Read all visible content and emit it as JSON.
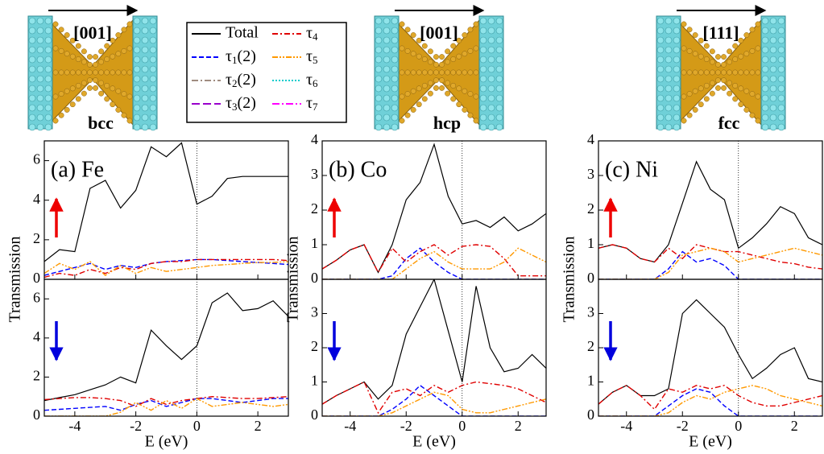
{
  "structures": [
    {
      "label": "bcc",
      "direction": "[001]"
    },
    {
      "label": "hcp",
      "direction": "[001]"
    },
    {
      "label": "fcc",
      "direction": "[111]"
    }
  ],
  "fermi_energy": 0,
  "legend": [
    {
      "name": "Total",
      "color": "#000000",
      "dash": "none"
    },
    {
      "name": "τ1(2)",
      "color": "#0000ff",
      "dash": "6,3"
    },
    {
      "name": "τ2(2)",
      "color": "#a08c80",
      "dash": "8,3,2,3"
    },
    {
      "name": "τ3(2)",
      "color": "#9900cc",
      "dash": "10,4"
    },
    {
      "name": "τ4",
      "color": "#e00000",
      "dash": "7,3,2,3"
    },
    {
      "name": "τ5",
      "color": "#ff9900",
      "dash": "7,2,2,2,2,2"
    },
    {
      "name": "τ6",
      "color": "#00cccc",
      "dash": "2,2"
    },
    {
      "name": "τ7",
      "color": "#ff00ff",
      "dash": "9,3,2,3"
    }
  ],
  "chart_data": [
    {
      "type": "line",
      "title": "(a) Fe",
      "y_label": "Transmission",
      "xlim": [
        -5,
        3
      ],
      "xticks": [
        -4,
        -2,
        0,
        2
      ],
      "ylim": [
        0,
        7
      ],
      "yticks": [
        0,
        2,
        4,
        6
      ],
      "x": [
        -5,
        -4.5,
        -4,
        -3.5,
        -3,
        -2.5,
        -2,
        -1.5,
        -1,
        -0.5,
        0,
        0.5,
        1,
        1.5,
        2,
        2.5,
        3
      ],
      "series": [
        {
          "name": "Total",
          "color": "#000000",
          "values": [
            0.9,
            1.5,
            1.4,
            4.6,
            5.0,
            3.6,
            4.5,
            6.7,
            6.2,
            6.9,
            3.8,
            4.2,
            5.1,
            5.2,
            5.2,
            5.2,
            5.2
          ]
        },
        {
          "name": "τ1(2)",
          "color": "#0000ff",
          "values": [
            0.2,
            0.4,
            0.6,
            0.8,
            0.5,
            0.7,
            0.6,
            0.8,
            0.9,
            0.95,
            1,
            1,
            0.95,
            0.9,
            0.85,
            0.8,
            0.75
          ]
        },
        {
          "name": "τ4",
          "color": "#e00000",
          "values": [
            0.1,
            0.3,
            0.2,
            0.5,
            0.3,
            0.6,
            0.5,
            0.8,
            0.9,
            0.9,
            1,
            1,
            1,
            1,
            1,
            1,
            0.95
          ]
        },
        {
          "name": "τ5",
          "color": "#ff9900",
          "values": [
            0.3,
            0.8,
            0.5,
            0.9,
            0.2,
            0.7,
            0.3,
            0.6,
            0.4,
            0.5,
            0.6,
            0.7,
            0.75,
            0.8,
            0.85,
            0.85,
            0.9
          ]
        }
      ]
    },
    {
      "type": "line",
      "x_label": "E (eV)",
      "xlim": [
        -5,
        3
      ],
      "xticks": [
        -4,
        -2,
        0,
        2
      ],
      "ylim": [
        0,
        7
      ],
      "yticks": [
        0,
        2,
        4,
        6
      ],
      "x": [
        -5,
        -4.5,
        -4,
        -3.5,
        -3,
        -2.5,
        -2,
        -1.5,
        -1,
        -0.5,
        0,
        0.5,
        1,
        1.5,
        2,
        2.5,
        3
      ],
      "series": [
        {
          "name": "Total",
          "color": "#000000",
          "values": [
            0.8,
            0.95,
            1.1,
            1.35,
            1.6,
            2.0,
            1.7,
            4.4,
            3.6,
            2.9,
            3.6,
            5.8,
            6.3,
            5.4,
            5.5,
            5.9,
            5.1
          ]
        },
        {
          "name": "τ1(2)",
          "color": "#0000ff",
          "values": [
            0.3,
            0.35,
            0.4,
            0.45,
            0.5,
            0.3,
            0.6,
            0.8,
            0.5,
            0.7,
            0.9,
            0.9,
            0.8,
            0.7,
            0.8,
            0.9,
            0.9
          ]
        },
        {
          "name": "τ4",
          "color": "#e00000",
          "values": [
            0.85,
            0.9,
            0.95,
            0.95,
            0.9,
            0.8,
            0.5,
            0.9,
            0.6,
            0.8,
            0.9,
            1,
            0.95,
            0.9,
            0.9,
            0.95,
            1
          ]
        },
        {
          "name": "τ5",
          "color": "#ff9900",
          "values": [
            0,
            0,
            0,
            0,
            0,
            0.2,
            0.7,
            0.3,
            0.8,
            0.4,
            0.9,
            0.5,
            0.6,
            0.7,
            0.6,
            0.5,
            0.6
          ]
        }
      ]
    },
    {
      "type": "line",
      "title": "(b) Co",
      "y_label": "Transmission",
      "xlim": [
        -5,
        3
      ],
      "xticks": [
        -4,
        -2,
        0,
        2
      ],
      "ylim": [
        0,
        4
      ],
      "yticks": [
        0,
        1,
        2,
        3,
        4
      ],
      "x": [
        -5,
        -4.5,
        -4,
        -3.5,
        -3,
        -2.5,
        -2,
        -1.5,
        -1,
        -0.5,
        0,
        0.5,
        1,
        1.5,
        2,
        2.5,
        3
      ],
      "series": [
        {
          "name": "Total",
          "color": "#000000",
          "values": [
            0.3,
            0.55,
            0.85,
            1.0,
            0.2,
            1.0,
            2.3,
            2.8,
            3.9,
            2.4,
            1.6,
            1.7,
            1.5,
            1.8,
            1.4,
            1.6,
            1.9
          ]
        },
        {
          "name": "τ1(2)",
          "color": "#0000ff",
          "values": [
            0,
            0,
            0,
            0,
            0,
            0.1,
            0.6,
            0.9,
            0.5,
            0.2,
            0,
            0,
            0,
            0,
            0,
            0,
            0
          ]
        },
        {
          "name": "τ4",
          "color": "#e00000",
          "values": [
            0.3,
            0.55,
            0.85,
            1.0,
            0.2,
            0.9,
            0.5,
            0.8,
            1,
            0.7,
            0.95,
            1,
            0.95,
            0.6,
            0.1,
            0.1,
            0.1
          ]
        },
        {
          "name": "τ5",
          "color": "#ff9900",
          "values": [
            0,
            0,
            0,
            0,
            0,
            0,
            0.3,
            0.6,
            0.8,
            0.5,
            0.3,
            0.3,
            0.3,
            0.5,
            0.9,
            0.7,
            0.5
          ]
        }
      ]
    },
    {
      "type": "line",
      "x_label": "E (eV)",
      "xlim": [
        -5,
        3
      ],
      "xticks": [
        -4,
        -2,
        0,
        2
      ],
      "ylim": [
        0,
        4
      ],
      "yticks": [
        0,
        1,
        2,
        3
      ],
      "x": [
        -5,
        -4.5,
        -4,
        -3.5,
        -3,
        -2.5,
        -2,
        -1.5,
        -1,
        -0.5,
        0,
        0.5,
        1,
        1.5,
        2,
        2.5,
        3
      ],
      "series": [
        {
          "name": "Total",
          "color": "#000000",
          "values": [
            0.35,
            0.6,
            0.8,
            1.0,
            0.5,
            0.9,
            2.4,
            3.2,
            4.0,
            2.5,
            1.0,
            3.8,
            2.0,
            1.3,
            1.4,
            1.8,
            1.4
          ]
        },
        {
          "name": "τ1(2)",
          "color": "#0000ff",
          "values": [
            0,
            0,
            0,
            0,
            0,
            0.2,
            0.5,
            0.9,
            0.6,
            0.3,
            0,
            0,
            0,
            0,
            0,
            0,
            0
          ]
        },
        {
          "name": "τ4",
          "color": "#e00000",
          "values": [
            0.35,
            0.6,
            0.8,
            1.0,
            0.1,
            0.7,
            0.8,
            0.6,
            0.9,
            0.7,
            0.9,
            1,
            0.95,
            0.9,
            0.8,
            0.6,
            0.4
          ]
        },
        {
          "name": "τ5",
          "color": "#ff9900",
          "values": [
            0,
            0,
            0,
            0,
            0,
            0.1,
            0.3,
            0.5,
            0.7,
            0.6,
            0.2,
            0.1,
            0.1,
            0.2,
            0.3,
            0.4,
            0.5
          ]
        }
      ]
    },
    {
      "type": "line",
      "title": "(c) Ni",
      "y_label": "Transmission",
      "xlim": [
        -5,
        3
      ],
      "xticks": [
        -4,
        -2,
        0,
        2
      ],
      "ylim": [
        0,
        4
      ],
      "yticks": [
        0,
        1,
        2,
        3,
        4
      ],
      "x": [
        -5,
        -4.5,
        -4,
        -3.5,
        -3,
        -2.5,
        -2,
        -1.5,
        -1,
        -0.5,
        0,
        0.5,
        1,
        1.5,
        2,
        2.5,
        3
      ],
      "series": [
        {
          "name": "Total",
          "color": "#000000",
          "values": [
            0.9,
            1.0,
            0.9,
            0.6,
            0.5,
            1.0,
            2.2,
            3.4,
            2.6,
            2.3,
            0.9,
            1.2,
            1.6,
            2.1,
            1.9,
            1.2,
            1.0
          ]
        },
        {
          "name": "τ1(2)",
          "color": "#0000ff",
          "values": [
            0,
            0,
            0,
            0,
            0,
            0.3,
            0.8,
            0.5,
            0.6,
            0.4,
            0,
            0,
            0,
            0,
            0,
            0,
            0
          ]
        },
        {
          "name": "τ4",
          "color": "#e00000",
          "values": [
            0.9,
            1.0,
            0.9,
            0.6,
            0.5,
            0.9,
            0.6,
            1,
            0.9,
            0.8,
            0.8,
            0.7,
            0.6,
            0.5,
            0.45,
            0.35,
            0.3
          ]
        },
        {
          "name": "τ5",
          "color": "#ff9900",
          "values": [
            0,
            0,
            0,
            0,
            0,
            0.2,
            0.7,
            0.8,
            0.9,
            0.8,
            0.5,
            0.6,
            0.7,
            0.8,
            0.9,
            0.8,
            0.7
          ]
        }
      ]
    },
    {
      "type": "line",
      "x_label": "E (eV)",
      "xlim": [
        -5,
        3
      ],
      "xticks": [
        -4,
        -2,
        0,
        2
      ],
      "ylim": [
        0,
        4
      ],
      "yticks": [
        0,
        1,
        2,
        3
      ],
      "x": [
        -5,
        -4.5,
        -4,
        -3.5,
        -3,
        -2.5,
        -2,
        -1.5,
        -1,
        -0.5,
        0,
        0.5,
        1,
        1.5,
        2,
        2.5,
        3
      ],
      "series": [
        {
          "name": "Total",
          "color": "#000000",
          "values": [
            0.35,
            0.7,
            0.9,
            0.6,
            0.6,
            0.8,
            3.0,
            3.4,
            3.0,
            2.6,
            1.8,
            1.1,
            1.4,
            1.8,
            2.0,
            1.1,
            1.0
          ]
        },
        {
          "name": "τ1(2)",
          "color": "#0000ff",
          "values": [
            0,
            0,
            0,
            0,
            0,
            0.3,
            0.6,
            0.8,
            0.7,
            0.3,
            0,
            0,
            0,
            0,
            0,
            0,
            0
          ]
        },
        {
          "name": "τ4",
          "color": "#e00000",
          "values": [
            0.35,
            0.7,
            0.9,
            0.6,
            0.2,
            0.8,
            0.7,
            0.9,
            0.8,
            0.9,
            0.6,
            0.4,
            0.3,
            0.3,
            0.4,
            0.5,
            0.6
          ]
        },
        {
          "name": "τ5",
          "color": "#ff9900",
          "values": [
            0,
            0,
            0,
            0,
            0,
            0.1,
            0.4,
            0.6,
            0.5,
            0.7,
            0.8,
            0.9,
            0.8,
            0.6,
            0.5,
            0.4,
            0.3
          ]
        }
      ]
    }
  ]
}
